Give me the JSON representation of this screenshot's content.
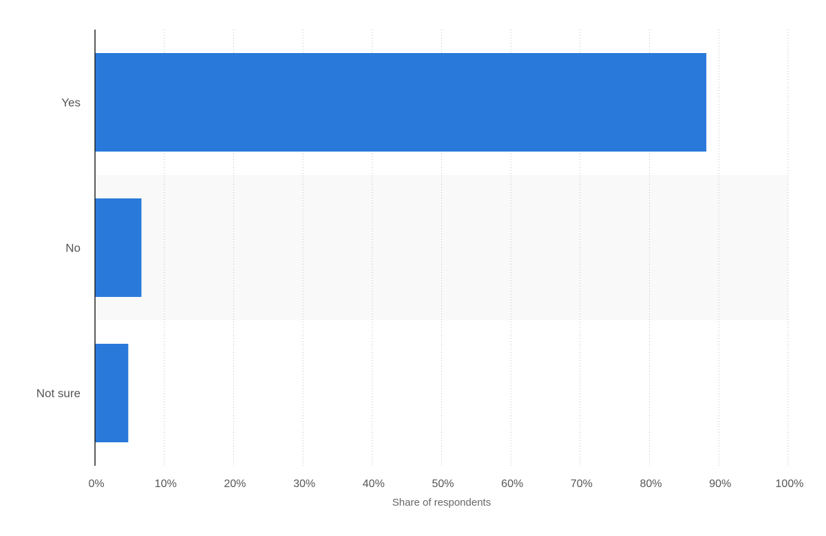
{
  "chart_data": {
    "type": "bar",
    "orientation": "horizontal",
    "categories": [
      "Yes",
      "No",
      "Not sure"
    ],
    "values": [
      88.2,
      6.7,
      4.8
    ],
    "unit": "%",
    "xlabel": "Share of respondents",
    "ylabel": "",
    "xlim": [
      0,
      100
    ],
    "x_ticks": [
      0,
      10,
      20,
      30,
      40,
      50,
      60,
      70,
      80,
      90,
      100
    ],
    "x_tick_labels": [
      "0%",
      "10%",
      "20%",
      "30%",
      "40%",
      "50%",
      "60%",
      "70%",
      "80%",
      "90%",
      "100%"
    ],
    "grid": "vertical-dotted",
    "legend": "none",
    "bar_color": "#2979DB",
    "band_color": "#F9F9F9",
    "gridline_color": "#BBBBBB",
    "axis_color": "#222222"
  }
}
